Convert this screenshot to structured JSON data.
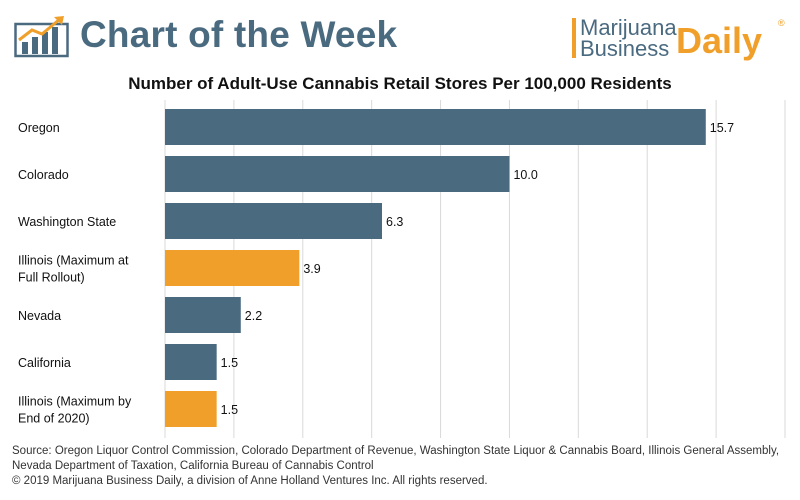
{
  "header": {
    "title": "Chart of the Week",
    "brand_line1": "Marijuana",
    "brand_line2": "Business",
    "brand_daily": "Daily",
    "brand_registered": "®"
  },
  "colors": {
    "primary": "#4a6a80",
    "accent": "#f0a02a",
    "bar_default": "#4a6a80",
    "bar_highlight": "#f0a02a",
    "grid": "#d9d9d9"
  },
  "chart_data": {
    "type": "bar",
    "orientation": "horizontal",
    "title": "Number of Adult-Use Cannabis Retail Stores Per 100,000 Residents",
    "xlabel": "",
    "ylabel": "",
    "xlim": [
      0,
      18
    ],
    "grid": true,
    "legend": "none",
    "categories": [
      "Oregon",
      "Colorado",
      "Washington State",
      "Illinois (Maximum at Full Rollout)",
      "Nevada",
      "California",
      "Illinois (Maximum by End of 2020)"
    ],
    "category_lines": [
      [
        "Oregon"
      ],
      [
        "Colorado"
      ],
      [
        "Washington State"
      ],
      [
        "Illinois (Maximum at",
        "Full Rollout)"
      ],
      [
        "Nevada"
      ],
      [
        "California"
      ],
      [
        "Illinois (Maximum by",
        "End of 2020)"
      ]
    ],
    "values": [
      15.7,
      10.0,
      6.3,
      3.9,
      2.2,
      1.5,
      1.5
    ],
    "value_labels": [
      "15.7",
      "10.0",
      "6.3",
      "3.9",
      "2.2",
      "1.5",
      "1.5"
    ],
    "highlight": [
      false,
      false,
      false,
      true,
      false,
      false,
      true
    ]
  },
  "source": {
    "line1": "Source: Oregon Liquor Control Commission, Colorado Department of Revenue, Washington State Liquor & Cannabis Board, Illinois General Assembly, Nevada Department of Taxation, California Bureau of Cannabis Control",
    "line2": "© 2019 Marijuana Business Daily, a division of Anne Holland Ventures Inc. All rights reserved."
  }
}
